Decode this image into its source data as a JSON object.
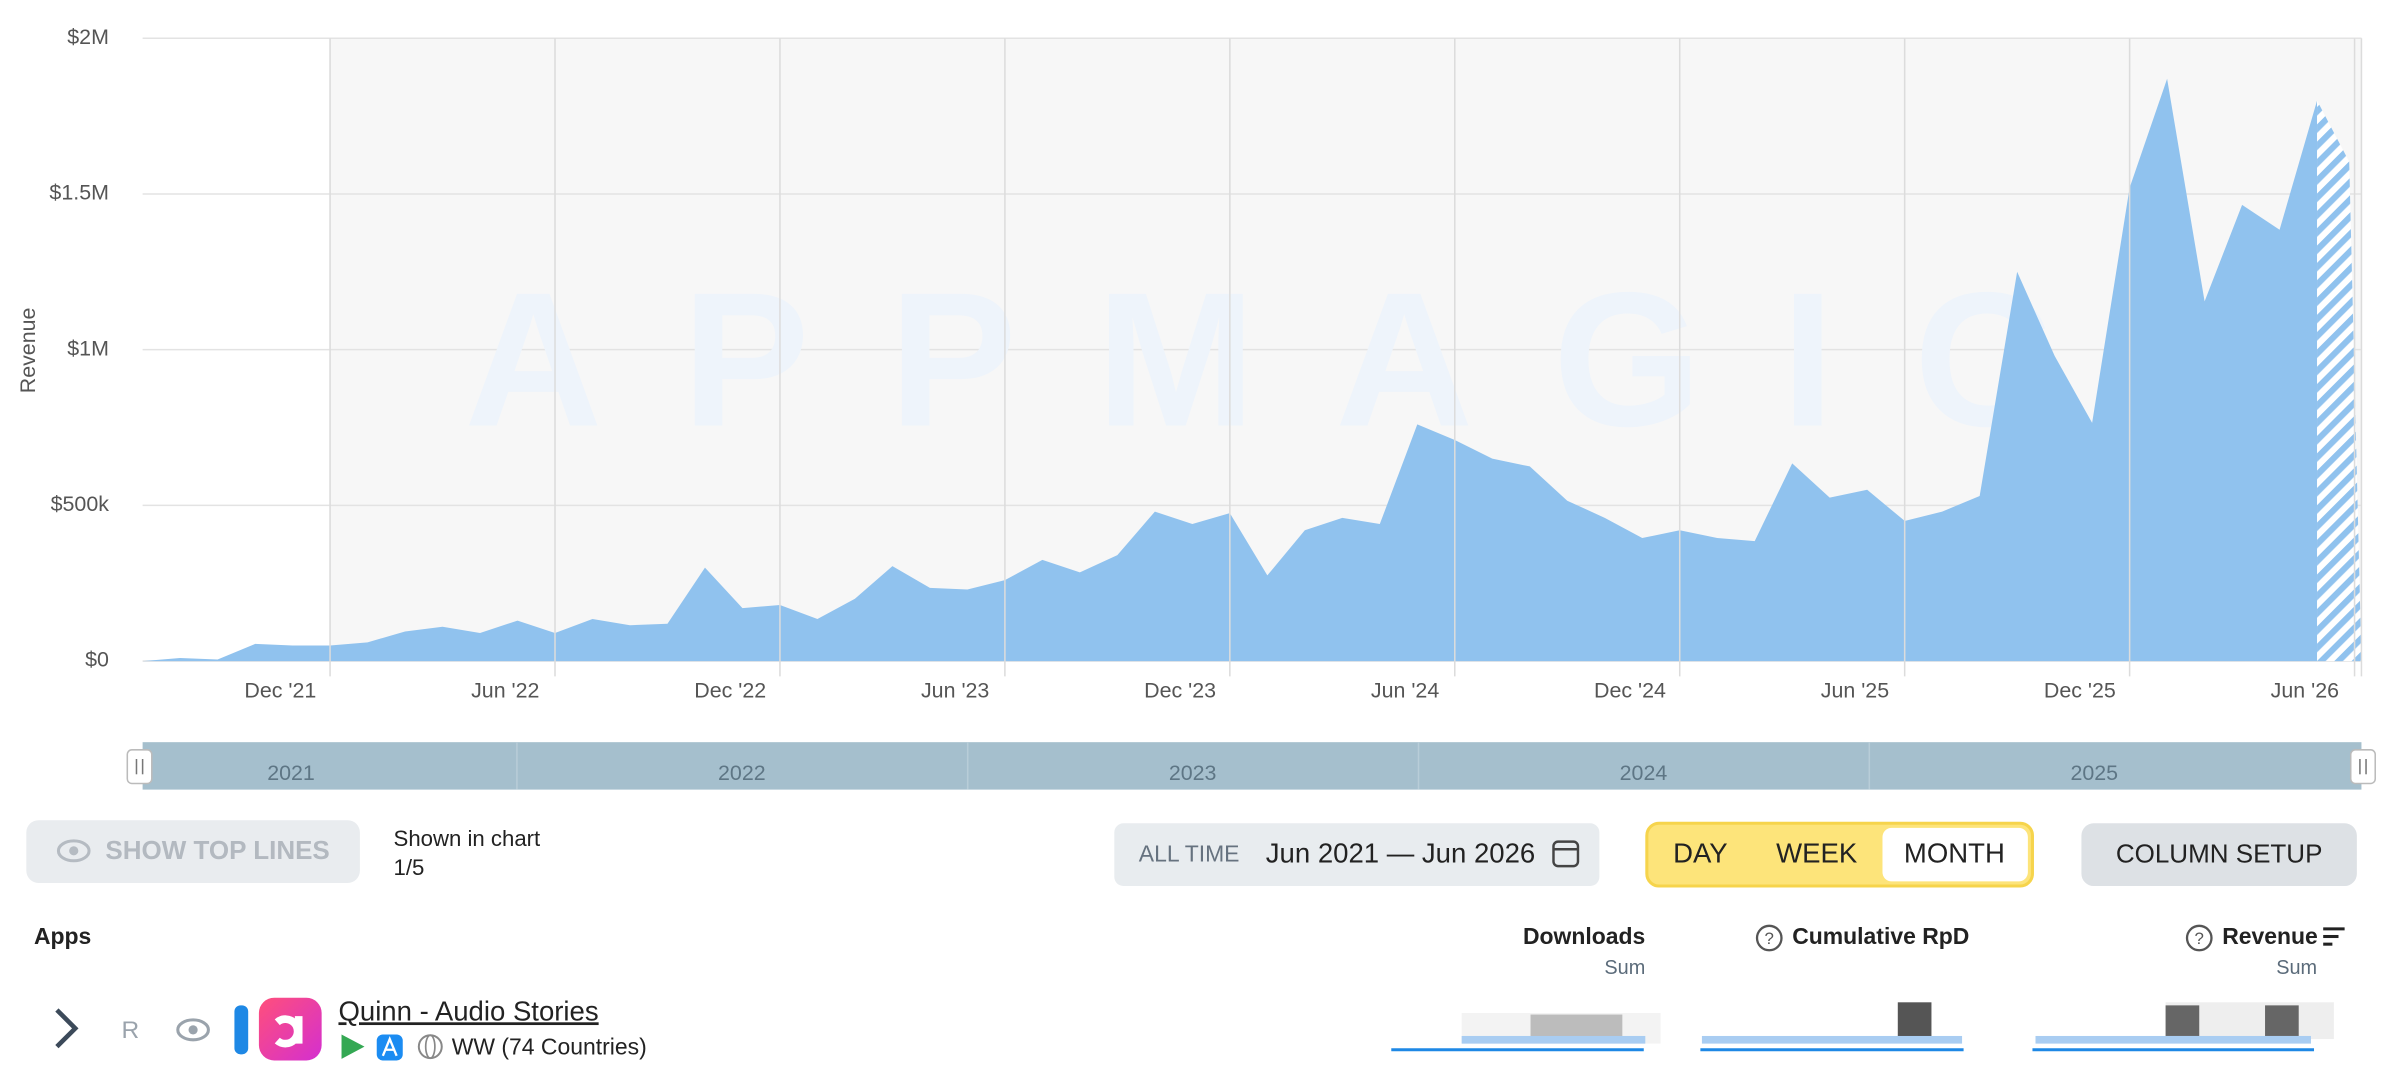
{
  "chart_data": {
    "type": "area",
    "y_label": "Revenue",
    "watermark": "APPMAGIC",
    "color": "#90c2ee",
    "hatched_last": true,
    "grid": true,
    "x": [
      null,
      null,
      null,
      null,
      "Dec '21",
      null,
      null,
      null,
      null,
      null,
      "Jun '22",
      null,
      null,
      null,
      null,
      null,
      "Dec '22",
      null,
      null,
      null,
      null,
      null,
      "Jun '23",
      null,
      null,
      null,
      null,
      null,
      "Dec '23",
      null,
      null,
      null,
      null,
      null,
      "Jun '24",
      null,
      null,
      null,
      null,
      null,
      "Dec '24",
      null,
      null,
      null,
      null,
      null,
      "Jun '25",
      null,
      null,
      null,
      null,
      null,
      "Dec '25",
      null,
      null,
      null,
      null,
      null,
      "Jun '26"
    ],
    "values": [
      0,
      10000,
      5000,
      55000,
      50000,
      50000,
      60000,
      95000,
      110000,
      90000,
      130000,
      90000,
      135000,
      115000,
      120000,
      300000,
      170000,
      180000,
      135000,
      200000,
      305000,
      235000,
      230000,
      260000,
      325000,
      285000,
      340000,
      480000,
      440000,
      475000,
      275000,
      420000,
      460000,
      440000,
      760000,
      710000,
      650000,
      625000,
      515000,
      460000,
      395000,
      420000,
      395000,
      385000,
      635000,
      525000,
      550000,
      450000,
      480000,
      530000,
      1250000,
      980000,
      765000,
      1520000,
      1870000,
      1155000,
      1465000,
      1385000,
      1800000
    ],
    "ylim": [
      0,
      2000000
    ],
    "yticks": [
      {
        "value": 0,
        "label": "$0"
      },
      {
        "value": 500000,
        "label": "$500k"
      },
      {
        "value": 1000000,
        "label": "$1M"
      },
      {
        "value": 1500000,
        "label": "$1.5M"
      },
      {
        "value": 2000000,
        "label": "$2M"
      }
    ],
    "navigator_years": [
      "2021",
      "2022",
      "2023",
      "2024",
      "2025"
    ]
  },
  "controls": {
    "show_top_lines": "SHOW TOP LINES",
    "shown_in_chart": "Shown in chart",
    "shown_count": "1/5",
    "range_preset": "ALL TIME",
    "range": "Jun 2021 — Jun 2026",
    "granularity": [
      "DAY",
      "WEEK",
      "MONTH"
    ],
    "column_setup": "COLUMN SETUP"
  },
  "table": {
    "headers": {
      "apps": "Apps",
      "downloads": "Downloads",
      "downloads_sub": "Sum",
      "rpd": "Cumulative RpD",
      "revenue": "Revenue",
      "revenue_sub": "Sum"
    },
    "row": {
      "rank_mark": "R",
      "name": "Quinn - Audio Stories",
      "region": "WW (74 Countries)"
    }
  }
}
